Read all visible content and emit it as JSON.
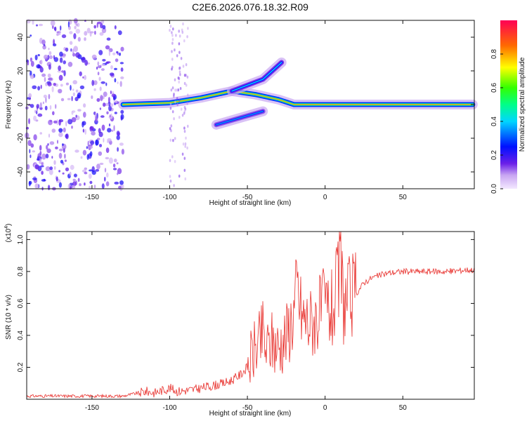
{
  "figure": {
    "title": "C2E6.2026.076.18.32.R09"
  },
  "chart_data": [
    {
      "type": "heatmap",
      "title": "C2E6.2026.076.18.32.R09",
      "xlabel": "Height of straight line (km)",
      "ylabel": "Frequency (Hz)",
      "xlim": [
        -192,
        96
      ],
      "ylim": [
        -50,
        50
      ],
      "xticks": [
        -150,
        -100,
        -50,
        0,
        50
      ],
      "yticks": [
        -40,
        -20,
        0,
        20,
        40
      ],
      "colorbar": {
        "label": "Normalized spectral amplitude",
        "range": [
          0,
          1
        ],
        "ticks": [
          0.0,
          0.2,
          0.4,
          0.6,
          0.8
        ]
      },
      "features": [
        {
          "name": "main-doppler-trace",
          "x": [
            -130,
            -100,
            -80,
            -60,
            -45,
            -30,
            -20,
            0,
            50,
            95
          ],
          "y": [
            0,
            1,
            4,
            8,
            6,
            3,
            0,
            0,
            0,
            0
          ],
          "amplitude": 0.8
        },
        {
          "name": "upper-branch",
          "x": [
            -60,
            -40,
            -28
          ],
          "y": [
            8,
            15,
            25
          ],
          "amplitude": 0.4
        },
        {
          "name": "lower-branch",
          "x": [
            -70,
            -55,
            -40
          ],
          "y": [
            -12,
            -8,
            -4
          ],
          "amplitude": 0.35
        },
        {
          "name": "noise-region",
          "x": [
            -192,
            -130
          ],
          "y": [
            -50,
            50
          ],
          "amplitude": 0.15
        }
      ]
    },
    {
      "type": "line",
      "xlabel": "Height of straight line (km)",
      "ylabel": "SNR (10 * v/v)",
      "yscale_label": "(x10",
      "yscale_exp": "4",
      "xlim": [
        -192,
        96
      ],
      "ylim": [
        0,
        1.05
      ],
      "xticks": [
        -150,
        -100,
        -50,
        0,
        50
      ],
      "yticks": [
        0.2,
        0.4,
        0.6,
        0.8,
        1.0
      ],
      "series": [
        {
          "name": "SNR",
          "color": "#e8302c",
          "x": [
            -192,
            -130,
            -115,
            -110,
            -100,
            -95,
            -85,
            -75,
            -65,
            -60,
            -55,
            -50,
            -45,
            -42,
            -40,
            -38,
            -35,
            -30,
            -25,
            -20,
            -18,
            -15,
            -10,
            -5,
            0,
            5,
            8,
            10,
            12,
            15,
            20,
            25,
            30,
            40,
            50,
            60,
            70,
            80,
            90,
            96
          ],
          "y": [
            0.02,
            0.02,
            0.05,
            0.04,
            0.07,
            0.05,
            0.06,
            0.08,
            0.1,
            0.12,
            0.15,
            0.2,
            0.32,
            0.35,
            0.42,
            0.3,
            0.36,
            0.33,
            0.4,
            0.55,
            0.7,
            0.52,
            0.48,
            0.52,
            0.58,
            0.55,
            0.7,
            0.85,
            0.6,
            0.62,
            0.66,
            0.73,
            0.76,
            0.79,
            0.8,
            0.8,
            0.8,
            0.8,
            0.81,
            0.81
          ]
        }
      ]
    }
  ]
}
